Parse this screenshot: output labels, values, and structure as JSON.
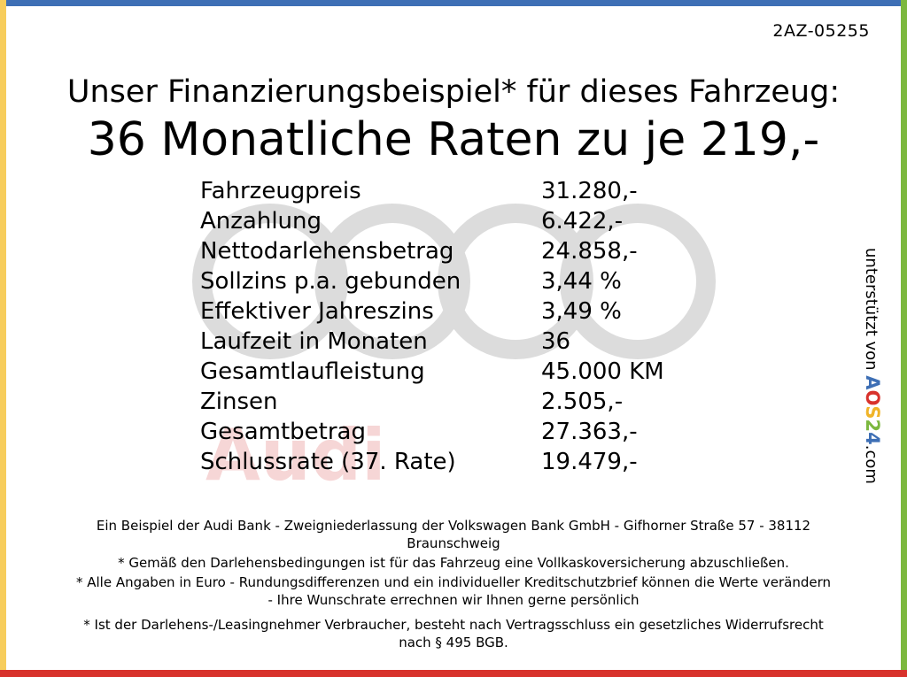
{
  "header": {
    "code": "2AZ-05255",
    "title": "Unser Finanzierungsbeispiel* für dieses Fahrzeug:",
    "subtitle": "36 Monatliche Raten zu je 219,-"
  },
  "watermark": "Audi",
  "table": {
    "rows": [
      [
        "Fahrzeugpreis",
        "31.280,-"
      ],
      [
        "Anzahlung",
        "6.422,-"
      ],
      [
        "Nettodarlehensbetrag",
        "24.858,-"
      ],
      [
        "Sollzins p.a. gebunden",
        "3,44 %"
      ],
      [
        "Effektiver Jahreszins",
        "3,49 %"
      ],
      [
        "Laufzeit in Monaten",
        "36"
      ],
      [
        "Gesamtlaufleistung",
        "45.000 KM"
      ],
      [
        "Zinsen",
        "2.505,-"
      ],
      [
        "Gesamtbetrag",
        "27.363,-"
      ],
      [
        "Schlussrate (37. Rate)",
        "19.479,-"
      ]
    ]
  },
  "side": {
    "prefix": "unterstützt von",
    "logo": "AOS24",
    "suffix": ".com"
  },
  "footer": [
    "Ein Beispiel der Audi Bank -  Zweigniederlassung der Volkswagen Bank GmbH - Gifhorner Straße 57 - 38112 Braunschweig",
    "* Gemäß den Darlehensbedingungen ist für das Fahrzeug eine Vollkaskoversicherung abzuschließen.",
    "* Alle Angaben in Euro - Rundungsdifferenzen und ein individueller Kreditschutzbrief können die Werte verändern - Ihre Wunschrate errechnen wir Ihnen gerne persönlich",
    "* Ist der Darlehens-/Leasingnehmer Verbraucher, besteht nach Vertragsschluss ein gesetzliches Widerrufsrecht nach § 495 BGB."
  ]
}
